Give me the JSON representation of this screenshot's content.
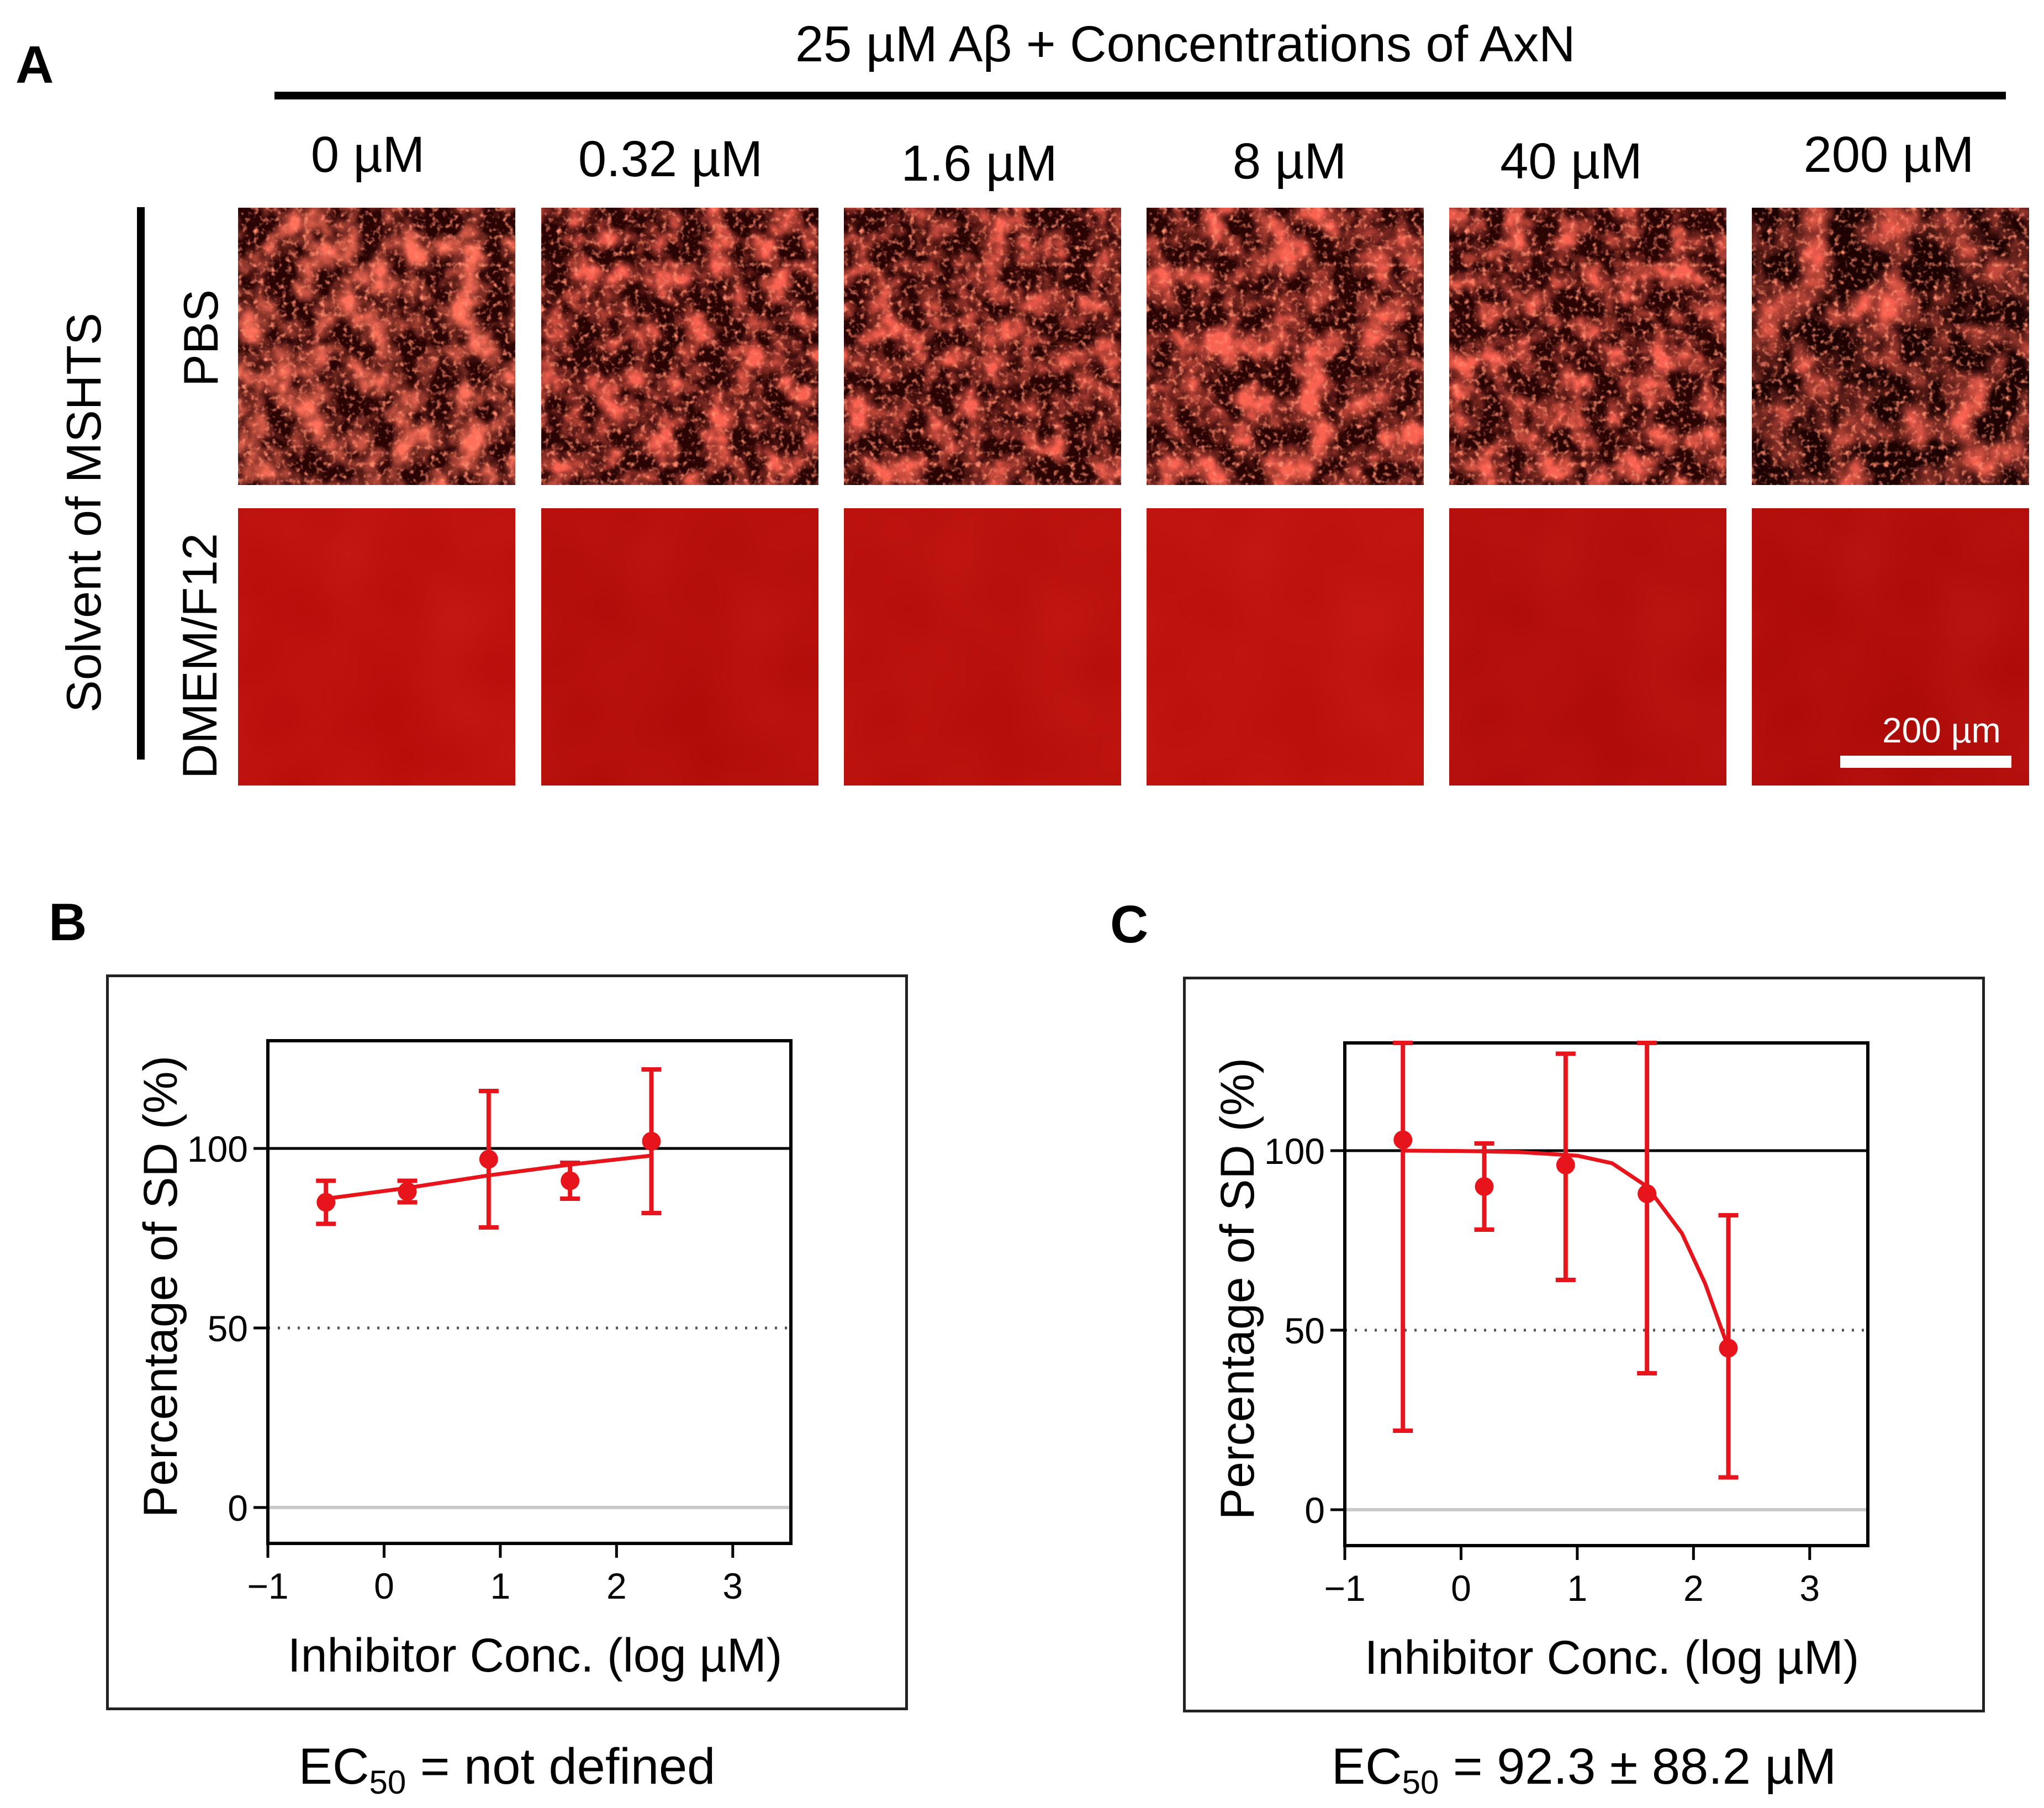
{
  "panel_a": {
    "letter": "A",
    "header": "25 µM Aβ + Concentrations of AxN",
    "concentrations": [
      "0 µM",
      "0.32 µM",
      "1.6 µM",
      "8 µM",
      "40 µM",
      "200 µM"
    ],
    "group_label": "Solvent of MSHTS",
    "rows": [
      "PBS",
      "DMEM/F12"
    ],
    "scale_bar": "200 µm",
    "colors": {
      "bright": "#ff2a1a",
      "dark": "#2a0303",
      "uniform": "#b80e0a"
    }
  },
  "chart_data": [
    {
      "panel": "B",
      "type": "scatter",
      "title": "",
      "xlabel": "Inhibitor Conc. (log µM)",
      "ylabel": "Percentage of SD (%)",
      "xlim": [
        -1,
        3.5
      ],
      "ylim": [
        -10,
        130
      ],
      "xticks": [
        -1,
        0,
        1,
        2,
        3
      ],
      "xtick_labels": [
        "−1",
        "0",
        "1",
        "2",
        "3"
      ],
      "yticks": [
        0,
        50,
        100
      ],
      "ytick_labels": [
        "0",
        "50",
        "100"
      ],
      "reference_lines": {
        "solid": 100,
        "dotted": 50,
        "baseline": 0
      },
      "points": [
        {
          "x": -0.5,
          "y": 85,
          "err": 6
        },
        {
          "x": 0.2,
          "y": 88,
          "err": 3
        },
        {
          "x": 0.9,
          "y": 97,
          "err": 19
        },
        {
          "x": 1.6,
          "y": 91,
          "err": 5
        },
        {
          "x": 2.3,
          "y": 102,
          "err": 20
        }
      ],
      "fit": [
        [
          -0.5,
          86
        ],
        [
          0.2,
          89
        ],
        [
          0.9,
          92.5
        ],
        [
          1.6,
          95.5
        ],
        [
          2.3,
          98
        ]
      ],
      "color": "#e8141b",
      "ec50_prefix": "EC",
      "ec50_sub": "50",
      "ec50_value": " = not defined"
    },
    {
      "panel": "C",
      "type": "scatter",
      "title": "",
      "xlabel": "Inhibitor Conc. (log µM)",
      "ylabel": "Percentage of SD (%)",
      "xlim": [
        -1,
        3.5
      ],
      "ylim": [
        -10,
        130
      ],
      "xticks": [
        -1,
        0,
        1,
        2,
        3
      ],
      "xtick_labels": [
        "−1",
        "0",
        "1",
        "2",
        "3"
      ],
      "yticks": [
        0,
        50,
        100
      ],
      "ytick_labels": [
        "0",
        "50",
        "100"
      ],
      "reference_lines": {
        "solid": 100,
        "dotted": 50,
        "baseline": 0
      },
      "points": [
        {
          "x": -0.5,
          "y": 103,
          "lo": 22,
          "hi": 130
        },
        {
          "x": 0.2,
          "y": 90,
          "lo": 78,
          "hi": 102
        },
        {
          "x": 0.9,
          "y": 96,
          "lo": 64,
          "hi": 127
        },
        {
          "x": 1.6,
          "y": 88,
          "lo": 38,
          "hi": 130
        },
        {
          "x": 2.3,
          "y": 45,
          "lo": 9,
          "hi": 82
        }
      ],
      "fit": [
        [
          -0.5,
          100
        ],
        [
          0.0,
          99.9
        ],
        [
          0.5,
          99.6
        ],
        [
          1.0,
          98.6
        ],
        [
          1.3,
          96.5
        ],
        [
          1.6,
          90
        ],
        [
          1.9,
          77
        ],
        [
          2.1,
          63
        ],
        [
          2.3,
          45
        ]
      ],
      "color": "#e8141b",
      "ec50_prefix": "EC",
      "ec50_sub": "50",
      "ec50_value": " = 92.3 ± 88.2 µM"
    }
  ]
}
